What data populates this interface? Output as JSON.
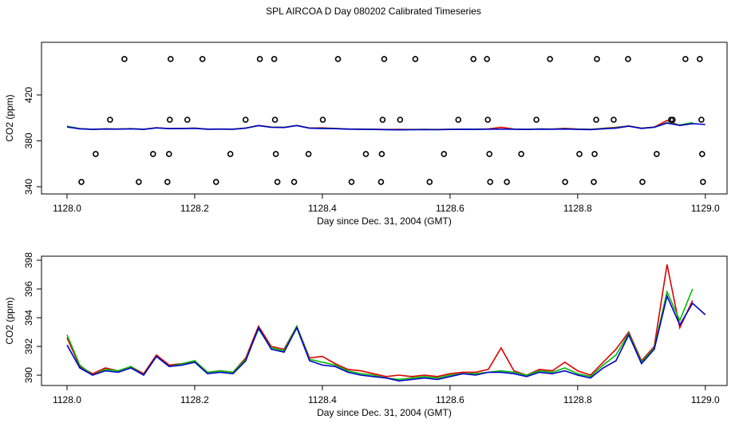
{
  "title": "SPL AIRCOA D  Day 080202  Calibrated Timeseries",
  "chart_data": [
    {
      "type": "line",
      "xlabel": "Day since Dec. 31, 2004 (GMT)",
      "ylabel": "CO2 (ppm)",
      "xlim": [
        1127.96,
        1129.034
      ],
      "ylim": [
        333.7,
        465.9
      ],
      "xticks": [
        {
          "value": 1128.0,
          "label": "1128.0"
        },
        {
          "value": 1128.2,
          "label": "1128.2"
        },
        {
          "value": 1128.4,
          "label": "1128.4"
        },
        {
          "value": 1128.6,
          "label": "1128.6"
        },
        {
          "value": 1128.8,
          "label": "1128.8"
        },
        {
          "value": 1129.0,
          "label": "1129.0"
        }
      ],
      "yticks": [
        340,
        380,
        420
      ],
      "x": [
        1128.0,
        1128.02,
        1128.04,
        1128.06,
        1128.08,
        1128.1,
        1128.12,
        1128.14,
        1128.16,
        1128.18,
        1128.2,
        1128.22,
        1128.24,
        1128.26,
        1128.28,
        1128.3,
        1128.32,
        1128.34,
        1128.36,
        1128.38,
        1128.4,
        1128.42,
        1128.44,
        1128.46,
        1128.48,
        1128.5,
        1128.52,
        1128.54,
        1128.56,
        1128.58,
        1128.6,
        1128.62,
        1128.64,
        1128.66,
        1128.68,
        1128.7,
        1128.72,
        1128.74,
        1128.76,
        1128.78,
        1128.8,
        1128.82,
        1128.84,
        1128.86,
        1128.88,
        1128.9,
        1128.92,
        1128.94,
        1128.96,
        1128.98,
        1129.0
      ],
      "series": [
        {
          "color": "#dd0000",
          "values": [
            392.6,
            390.6,
            390.1,
            390.5,
            390.3,
            390.6,
            390.1,
            391.4,
            390.7,
            390.8,
            391.0,
            390.2,
            390.3,
            390.2,
            391.2,
            393.4,
            392.0,
            391.8,
            393.4,
            391.2,
            391.3,
            390.8,
            390.4,
            390.3,
            390.1,
            389.9,
            390.0,
            389.9,
            390.0,
            389.9,
            390.1,
            390.2,
            390.2,
            390.4,
            391.9,
            390.3,
            390.0,
            390.4,
            390.3,
            390.9,
            390.3,
            390.0,
            390.9,
            391.8,
            393.0,
            391.0,
            392.0,
            397.7,
            393.3,
            395.2,
            null
          ]
        },
        {
          "color": "#00bb00",
          "values": [
            392.8,
            390.7,
            390.0,
            390.4,
            390.3,
            390.6,
            390.0,
            391.3,
            390.6,
            390.8,
            391.0,
            390.2,
            390.3,
            390.2,
            391.1,
            393.2,
            391.9,
            391.7,
            393.4,
            391.1,
            390.9,
            390.7,
            390.3,
            390.1,
            390.0,
            389.8,
            389.7,
            389.8,
            389.9,
            389.8,
            390.0,
            390.1,
            390.1,
            390.2,
            390.3,
            390.2,
            390.0,
            390.3,
            390.2,
            390.5,
            390.1,
            389.9,
            390.7,
            391.4,
            392.9,
            390.9,
            391.9,
            395.8,
            393.8,
            396.0,
            null
          ]
        },
        {
          "color": "#0000cc",
          "values": [
            392.1,
            390.5,
            390.0,
            390.3,
            390.2,
            390.5,
            390.0,
            391.3,
            390.6,
            390.7,
            390.9,
            390.1,
            390.2,
            390.1,
            391.0,
            393.3,
            391.8,
            391.6,
            393.3,
            391.0,
            390.7,
            390.6,
            390.2,
            390.0,
            389.9,
            389.8,
            389.6,
            389.7,
            389.8,
            389.7,
            389.9,
            390.1,
            390.0,
            390.2,
            390.2,
            390.1,
            389.9,
            390.2,
            390.1,
            390.3,
            390.0,
            389.8,
            390.5,
            391.0,
            392.8,
            390.8,
            391.8,
            395.5,
            393.5,
            395.0,
            394.2
          ]
        },
        {
          "color": "#000000",
          "marker": "circle",
          "x": [
            1128.0899,
            1128.1623,
            1128.2122,
            1128.3021,
            1128.3246,
            1128.4245,
            1128.4969,
            1128.5456,
            1128.6367,
            1128.6579,
            1128.7566,
            1128.8302,
            1128.8789,
            1128.9688,
            1128.9913,
            1128.0674,
            1128.161,
            1128.1885,
            1128.2797,
            1128.3258,
            1128.4007,
            1128.4944,
            1128.5218,
            1128.613,
            1128.6592,
            1128.7353,
            1128.829,
            1128.8564,
            1128.9463,
            1128.9488,
            1128.9938,
            1128.0449,
            1128.1348,
            1128.1598,
            1128.2559,
            1128.3271,
            1128.3783,
            1128.4682,
            1128.4931,
            1128.5905,
            1128.6617,
            1128.7116,
            1128.8027,
            1128.8265,
            1128.9238,
            1128.995,
            1128.0225,
            1128.1124,
            1128.1573,
            1128.2335,
            1128.3296,
            1128.3558,
            1128.4457,
            1128.4919,
            1128.568,
            1128.6629,
            1128.6891,
            1128.7803,
            1128.8252,
            1128.9014,
            1128.9963
          ],
          "values": [
            451.3,
            451.3,
            451.3,
            451.3,
            451.3,
            451.3,
            451.3,
            451.3,
            451.3,
            451.3,
            451.3,
            451.3,
            451.3,
            451.3,
            451.3,
            398.4,
            398.4,
            398.4,
            398.4,
            398.4,
            398.4,
            398.4,
            398.4,
            398.4,
            398.4,
            398.4,
            398.4,
            398.4,
            398.4,
            398.4,
            398.4,
            368.5,
            368.5,
            368.5,
            368.5,
            368.5,
            368.5,
            368.5,
            368.5,
            368.5,
            368.5,
            368.5,
            368.5,
            368.5,
            368.5,
            368.5,
            344.2,
            344.2,
            344.2,
            344.2,
            344.2,
            344.2,
            344.2,
            344.2,
            344.2,
            344.2,
            344.2,
            344.2,
            344.2,
            344.2,
            344.2
          ]
        }
      ]
    },
    {
      "type": "line",
      "xlabel": "Day since Dec. 31, 2004 (GMT)",
      "ylabel": "CO2 (ppm)",
      "xlim": [
        1127.96,
        1129.034
      ],
      "ylim": [
        389.28,
        398.28
      ],
      "xticks": [
        {
          "value": 1128.0,
          "label": "1128.0"
        },
        {
          "value": 1128.2,
          "label": "1128.2"
        },
        {
          "value": 1128.4,
          "label": "1128.4"
        },
        {
          "value": 1128.6,
          "label": "1128.6"
        },
        {
          "value": 1128.8,
          "label": "1128.8"
        },
        {
          "value": 1129.0,
          "label": "1129.0"
        }
      ],
      "yticks": [
        390,
        392,
        394,
        396,
        398
      ],
      "x": [
        1128.0,
        1128.02,
        1128.04,
        1128.06,
        1128.08,
        1128.1,
        1128.12,
        1128.14,
        1128.16,
        1128.18,
        1128.2,
        1128.22,
        1128.24,
        1128.26,
        1128.28,
        1128.3,
        1128.32,
        1128.34,
        1128.36,
        1128.38,
        1128.4,
        1128.42,
        1128.44,
        1128.46,
        1128.48,
        1128.5,
        1128.52,
        1128.54,
        1128.56,
        1128.58,
        1128.6,
        1128.62,
        1128.64,
        1128.66,
        1128.68,
        1128.7,
        1128.72,
        1128.74,
        1128.76,
        1128.78,
        1128.8,
        1128.82,
        1128.84,
        1128.86,
        1128.88,
        1128.9,
        1128.92,
        1128.94,
        1128.96,
        1128.98,
        1129.0
      ],
      "series": [
        {
          "color": "#dd0000",
          "values": [
            392.6,
            390.6,
            390.1,
            390.5,
            390.3,
            390.6,
            390.1,
            391.4,
            390.7,
            390.8,
            391.0,
            390.2,
            390.3,
            390.2,
            391.2,
            393.4,
            392.0,
            391.8,
            393.4,
            391.2,
            391.3,
            390.8,
            390.4,
            390.3,
            390.1,
            389.9,
            390.0,
            389.9,
            390.0,
            389.9,
            390.1,
            390.2,
            390.2,
            390.4,
            391.9,
            390.3,
            390.0,
            390.4,
            390.3,
            390.9,
            390.3,
            390.0,
            390.9,
            391.8,
            393.0,
            391.0,
            392.0,
            397.7,
            393.3,
            395.2,
            null
          ]
        },
        {
          "color": "#00bb00",
          "values": [
            392.8,
            390.7,
            390.0,
            390.4,
            390.3,
            390.6,
            390.0,
            391.3,
            390.6,
            390.8,
            391.0,
            390.2,
            390.3,
            390.2,
            391.1,
            393.2,
            391.9,
            391.7,
            393.4,
            391.1,
            390.9,
            390.7,
            390.3,
            390.1,
            390.0,
            389.8,
            389.7,
            389.8,
            389.9,
            389.8,
            390.0,
            390.1,
            390.1,
            390.2,
            390.3,
            390.2,
            390.0,
            390.3,
            390.2,
            390.5,
            390.1,
            389.9,
            390.7,
            391.4,
            392.9,
            390.9,
            391.9,
            395.8,
            393.8,
            396.0,
            null
          ]
        },
        {
          "color": "#0000cc",
          "values": [
            392.1,
            390.5,
            390.0,
            390.3,
            390.2,
            390.5,
            390.0,
            391.3,
            390.6,
            390.7,
            390.9,
            390.1,
            390.2,
            390.1,
            391.0,
            393.3,
            391.8,
            391.6,
            393.3,
            391.0,
            390.7,
            390.6,
            390.2,
            390.0,
            389.9,
            389.8,
            389.6,
            389.7,
            389.8,
            389.7,
            389.9,
            390.1,
            390.0,
            390.2,
            390.2,
            390.1,
            389.9,
            390.2,
            390.1,
            390.3,
            390.0,
            389.8,
            390.5,
            391.0,
            392.8,
            390.8,
            391.8,
            395.5,
            393.5,
            395.0,
            394.2
          ]
        }
      ]
    }
  ]
}
